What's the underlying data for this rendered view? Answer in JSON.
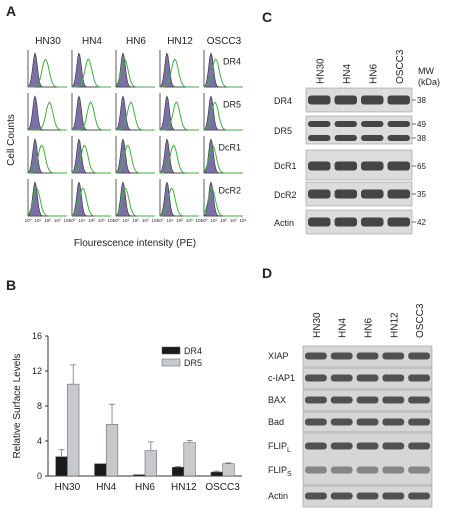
{
  "panel_a": {
    "label": "A",
    "columns": [
      "HN30",
      "HN4",
      "HN6",
      "HN12",
      "OSCC3"
    ],
    "rows": [
      "DR4",
      "DR5",
      "DcR1",
      "DcR2"
    ],
    "y_label": "Cell Counts",
    "x_label": "Flourescence intensity (PE)",
    "x_ticks": [
      "10⁰",
      "10¹",
      "10²",
      "10³",
      "10⁴"
    ]
  },
  "chart_data": {
    "type": "bar",
    "label": "B",
    "y_label": "Relative Surface Levels",
    "categories": [
      "HN30",
      "HN4",
      "HN6",
      "HN12",
      "OSCC3"
    ],
    "series": [
      {
        "name": "DR4",
        "color": "#1a1a1a",
        "values": [
          2.2,
          1.4,
          0.15,
          1.0,
          0.45
        ],
        "errors": [
          0.8,
          0,
          0,
          0.1,
          0.1
        ]
      },
      {
        "name": "DR5",
        "color": "#c8c9cc",
        "values": [
          10.5,
          5.9,
          2.9,
          3.8,
          1.4
        ],
        "errors": [
          2.2,
          2.3,
          1.0,
          0.25,
          0.1
        ]
      }
    ],
    "ylim": [
      0,
      16
    ],
    "yticks": [
      0,
      4,
      8,
      12,
      16
    ],
    "legend": "upper right"
  },
  "panel_c": {
    "label": "C",
    "columns": [
      "HN30",
      "HN4",
      "HN6",
      "OSCC3"
    ],
    "mw_title": [
      "MW",
      "(kDa)"
    ],
    "rows": [
      {
        "name": "DR4",
        "mw": [
          "38"
        ]
      },
      {
        "name": "DR5",
        "mw": [
          "49",
          "38"
        ]
      },
      {
        "name": "DcR1",
        "mw": [
          "65"
        ]
      },
      {
        "name": "DcR2",
        "mw": [
          "35"
        ]
      },
      {
        "name": "Actin",
        "mw": [
          "42"
        ]
      }
    ]
  },
  "panel_d": {
    "label": "D",
    "columns": [
      "HN30",
      "HN4",
      "HN6",
      "HN12",
      "OSCC3"
    ],
    "rows": [
      {
        "text": "XIAP"
      },
      {
        "text": "c-IAP1"
      },
      {
        "text": "BAX"
      },
      {
        "text": "Bad"
      },
      {
        "text": "FLIP",
        "sub": "L"
      },
      {
        "text": "FLIP",
        "sub": "S"
      },
      {
        "text": "Actin"
      }
    ]
  }
}
